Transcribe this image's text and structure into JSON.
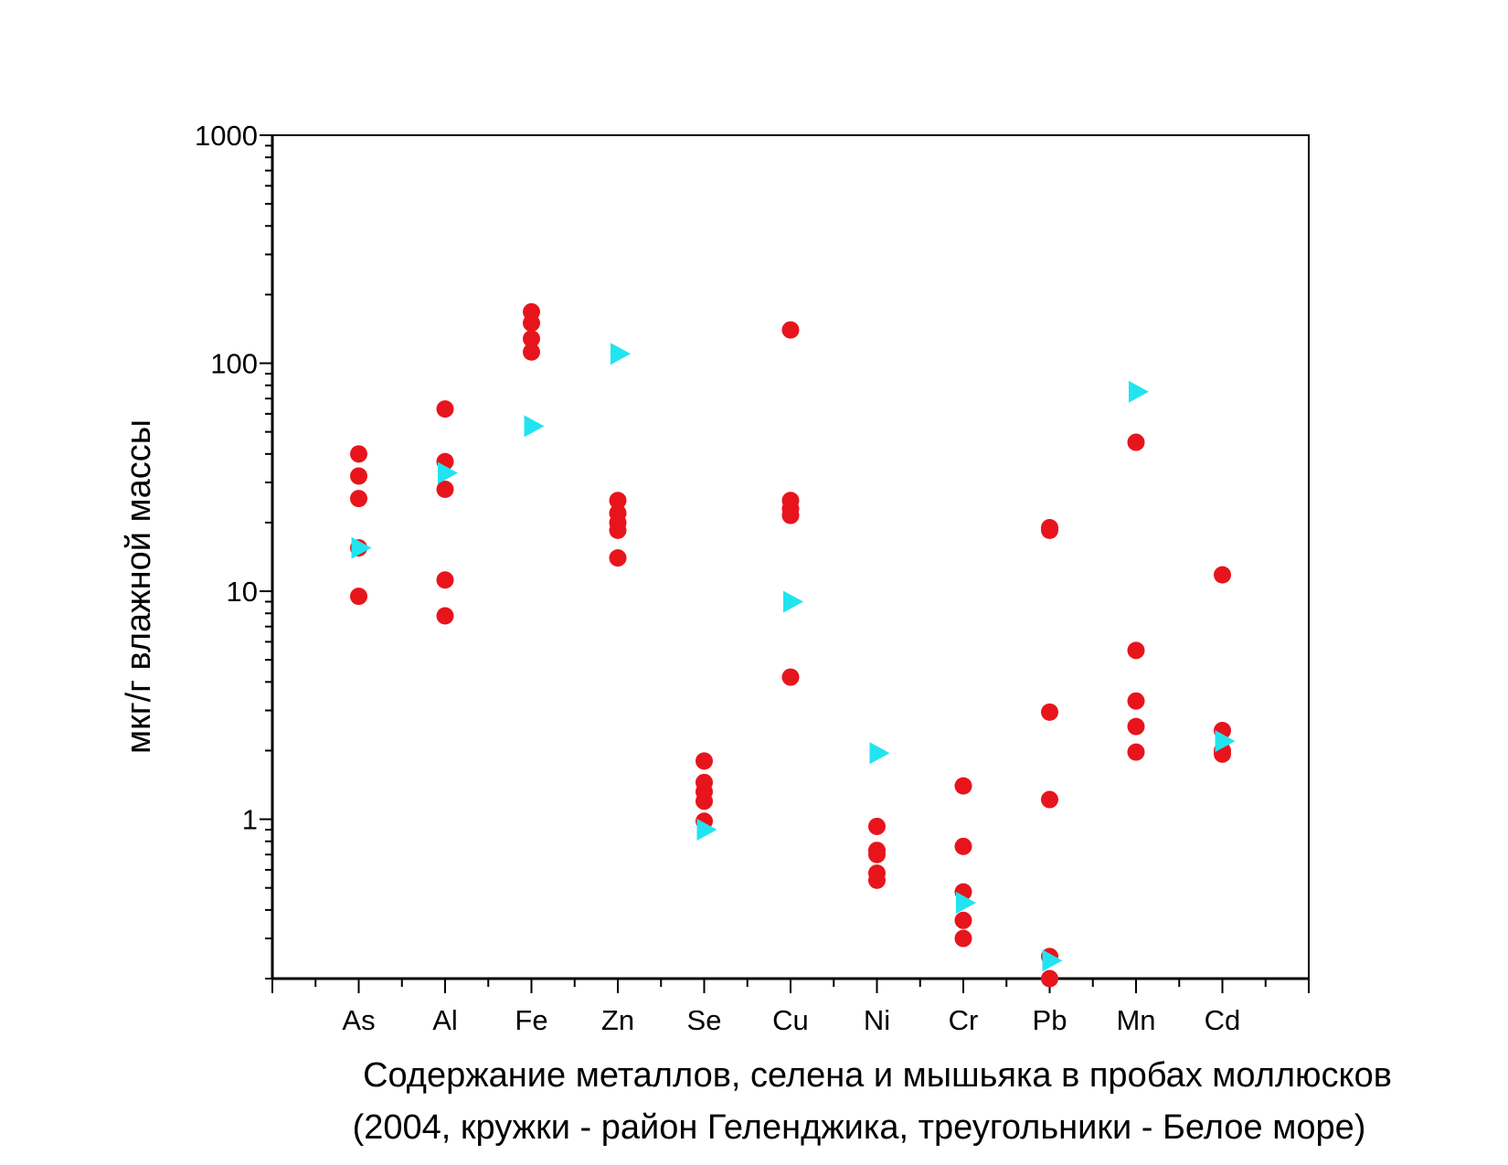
{
  "chart_data": {
    "type": "scatter",
    "caption": [
      "Содержание металлов, селена и мышьяка в пробах моллюсков",
      "(2004, кружки - район Геленджика, треугольники - Белое море)"
    ],
    "ylabel": "мкг/г влажной массы",
    "xlabel": "",
    "categories": [
      "As",
      "Al",
      "Fe",
      "Zn",
      "Se",
      "Cu",
      "Ni",
      "Cr",
      "Pb",
      "Mn",
      "Cd"
    ],
    "y_scale": "log",
    "ylim": [
      0.2,
      1000
    ],
    "y_ticks": [
      "1",
      "10",
      "100",
      "1000"
    ],
    "grid": false,
    "series": [
      {
        "marker": "circle",
        "color": "#e8141c",
        "points": [
          {
            "cat": "As",
            "values": [
              40,
              32,
              25.5,
              15.5,
              9.5
            ]
          },
          {
            "cat": "Al",
            "values": [
              63,
              37,
              28,
              11.2,
              7.8
            ]
          },
          {
            "cat": "Fe",
            "values": [
              168,
              150,
              128,
              112
            ]
          },
          {
            "cat": "Zn",
            "values": [
              25,
              22,
              20,
              18.5,
              14
            ]
          },
          {
            "cat": "Se",
            "values": [
              1.8,
              1.45,
              1.32,
              1.2,
              0.98
            ]
          },
          {
            "cat": "Cu",
            "values": [
              140,
              25,
              23,
              21.5,
              4.2
            ]
          },
          {
            "cat": "Ni",
            "values": [
              0.93,
              0.73,
              0.7,
              0.58,
              0.54
            ]
          },
          {
            "cat": "Cr",
            "values": [
              1.4,
              0.76,
              0.48,
              0.36,
              0.3
            ]
          },
          {
            "cat": "Pb",
            "values": [
              19,
              18.5,
              2.95,
              1.22,
              0.25,
              0.2
            ]
          },
          {
            "cat": "Mn",
            "values": [
              45,
              5.5,
              3.3,
              2.55,
              1.97
            ]
          },
          {
            "cat": "Cd",
            "values": [
              11.8,
              2.45,
              2.0,
              1.93
            ]
          }
        ]
      },
      {
        "marker": "triangle-right",
        "color": "#22e4f0",
        "points": [
          {
            "cat": "As",
            "values": [
              15.5
            ]
          },
          {
            "cat": "Al",
            "values": [
              33
            ]
          },
          {
            "cat": "Fe",
            "values": [
              53
            ]
          },
          {
            "cat": "Zn",
            "values": [
              110
            ]
          },
          {
            "cat": "Se",
            "values": [
              0.9
            ]
          },
          {
            "cat": "Cu",
            "values": [
              9
            ]
          },
          {
            "cat": "Ni",
            "values": [
              1.95
            ]
          },
          {
            "cat": "Cr",
            "values": [
              0.43
            ]
          },
          {
            "cat": "Pb",
            "values": [
              0.24
            ]
          },
          {
            "cat": "Mn",
            "values": [
              75
            ]
          },
          {
            "cat": "Cd",
            "values": [
              2.2
            ]
          }
        ]
      }
    ]
  }
}
